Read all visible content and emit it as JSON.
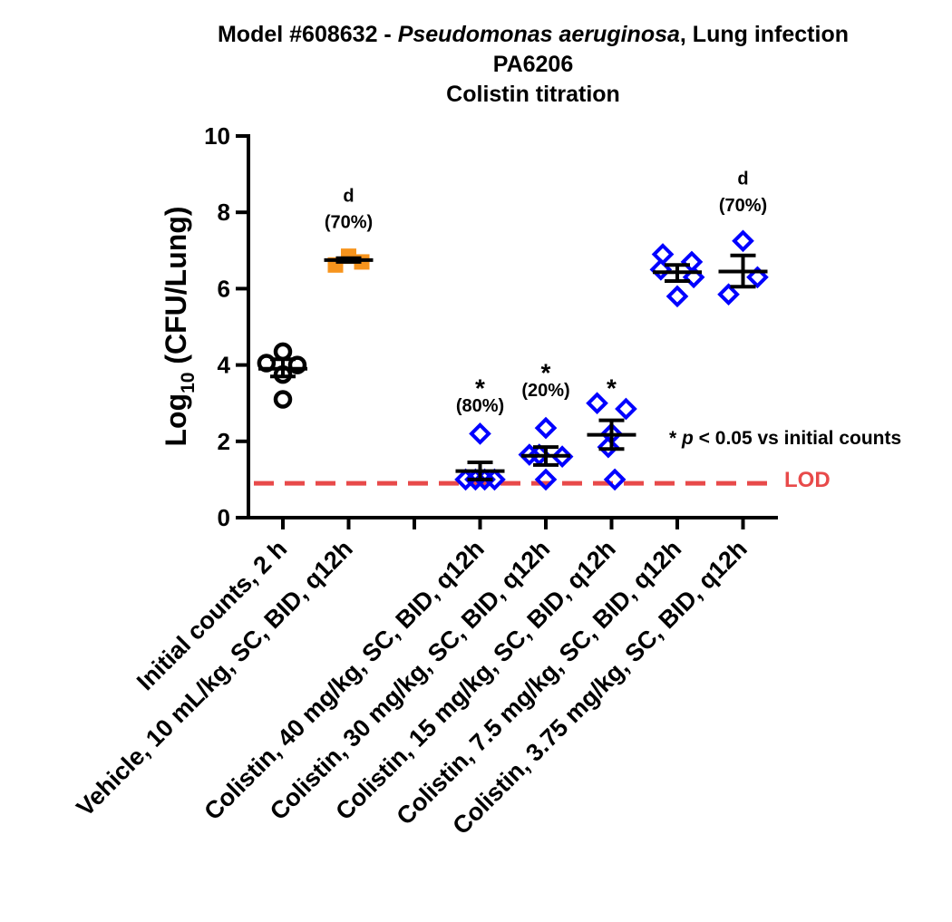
{
  "chart_data": {
    "type": "scatter",
    "title_lines": [
      {
        "parts": [
          {
            "text": "Model #608632 - ",
            "italic": false
          },
          {
            "text": "Pseudomonas aeruginosa",
            "italic": true
          },
          {
            "text": ", Lung infection",
            "italic": false
          }
        ]
      },
      {
        "parts": [
          {
            "text": "PA6206",
            "italic": false
          }
        ]
      },
      {
        "parts": [
          {
            "text": "Colistin titration",
            "italic": false
          }
        ]
      }
    ],
    "ylabel": {
      "prefix": "Log",
      "subscript": "10",
      "suffix": " (CFU/Lung)"
    },
    "ylim": [
      0,
      10
    ],
    "yticks": [
      0,
      2,
      4,
      6,
      8,
      10
    ],
    "categories": [
      {
        "label": "Initial counts, 2 h",
        "pos": 1
      },
      {
        "label": "Vehicle, 10 mL/kg, SC, BID, q12h",
        "pos": 2
      },
      {
        "label": "Colistin, 40 mg/kg, SC, BID, q12h",
        "pos": 4
      },
      {
        "label": "Colistin, 30 mg/kg, SC, BID, q12h",
        "pos": 5
      },
      {
        "label": "Colistin, 15 mg/kg, SC, BID, q12h",
        "pos": 6
      },
      {
        "label": "Colistin, 7.5 mg/kg, SC, BID, q12h",
        "pos": 7
      },
      {
        "label": "Colistin, 3.75 mg/kg, SC, BID, q12h",
        "pos": 8
      }
    ],
    "series": [
      {
        "pos": 1,
        "marker": "circle",
        "color": "#000000",
        "fill": "none",
        "points": [
          [
            -0.25,
            4.05
          ],
          [
            0.0,
            4.35
          ],
          [
            0.22,
            4.0
          ],
          [
            0.0,
            3.75
          ],
          [
            0.0,
            3.1
          ]
        ],
        "mean": 3.9,
        "err": [
          3.7,
          4.15
        ]
      },
      {
        "pos": 2,
        "marker": "square",
        "color": "#F7941D",
        "fill": "#F7941D",
        "points": [
          [
            -0.2,
            6.62
          ],
          [
            0.0,
            6.85
          ],
          [
            0.2,
            6.7
          ]
        ],
        "mean": 6.75,
        "err": [
          6.7,
          6.8
        ]
      },
      {
        "pos": 4,
        "marker": "diamond",
        "color": "#0000FF",
        "fill": "none",
        "points": [
          [
            -0.22,
            1.0
          ],
          [
            -0.07,
            1.0
          ],
          [
            0.07,
            1.0
          ],
          [
            0.22,
            1.0
          ],
          [
            0.0,
            2.2
          ]
        ],
        "mean": 1.22,
        "err": [
          1.0,
          1.45
        ]
      },
      {
        "pos": 5,
        "marker": "diamond",
        "color": "#0000FF",
        "fill": "none",
        "points": [
          [
            -0.25,
            1.65
          ],
          [
            0.0,
            2.35
          ],
          [
            0.25,
            1.6
          ],
          [
            0.0,
            1.0
          ],
          [
            -0.1,
            1.65
          ]
        ],
        "mean": 1.62,
        "err": [
          1.38,
          1.85
        ]
      },
      {
        "pos": 6,
        "marker": "diamond",
        "color": "#0000FF",
        "fill": "none",
        "points": [
          [
            -0.22,
            3.0
          ],
          [
            0.22,
            2.85
          ],
          [
            0.0,
            2.2
          ],
          [
            -0.05,
            1.85
          ],
          [
            0.05,
            1.0
          ]
        ],
        "mean": 2.17,
        "err": [
          1.8,
          2.55
        ]
      },
      {
        "pos": 7,
        "marker": "diamond",
        "color": "#0000FF",
        "fill": "none",
        "points": [
          [
            -0.22,
            6.9
          ],
          [
            0.22,
            6.7
          ],
          [
            -0.25,
            6.5
          ],
          [
            0.25,
            6.3
          ],
          [
            0.0,
            5.8
          ]
        ],
        "mean": 6.43,
        "err": [
          6.2,
          6.62
        ]
      },
      {
        "pos": 8,
        "marker": "diamond",
        "color": "#0000FF",
        "fill": "none",
        "points": [
          [
            0.0,
            7.25
          ],
          [
            0.22,
            6.3
          ],
          [
            -0.22,
            5.85
          ]
        ],
        "mean": 6.45,
        "err": [
          6.05,
          6.87
        ]
      }
    ],
    "annotations": [
      {
        "pos": 2,
        "letter": "d",
        "letter_y": 8.45,
        "pct": "(70%)",
        "pct_y": 7.75
      },
      {
        "pos": 8,
        "letter": "d",
        "letter_y": 8.9,
        "pct": "(70%)",
        "pct_y": 8.2
      },
      {
        "pos": 4,
        "star": "*",
        "star_y": 3.6,
        "pct": "(80%)",
        "pct_y": 2.95
      },
      {
        "pos": 5,
        "star": "*",
        "star_y": 4.0,
        "pct": "(20%)",
        "pct_y": 3.35
      },
      {
        "pos": 6,
        "star": "*",
        "star_y": 3.6
      }
    ],
    "significance_note": {
      "star": "*",
      "p": "p",
      "rest": " < 0.05 vs initial counts"
    },
    "lod": {
      "value": 0.9,
      "label": "LOD",
      "color": "#E84A4A"
    },
    "xlim": [
      0.5,
      9.2
    ]
  }
}
